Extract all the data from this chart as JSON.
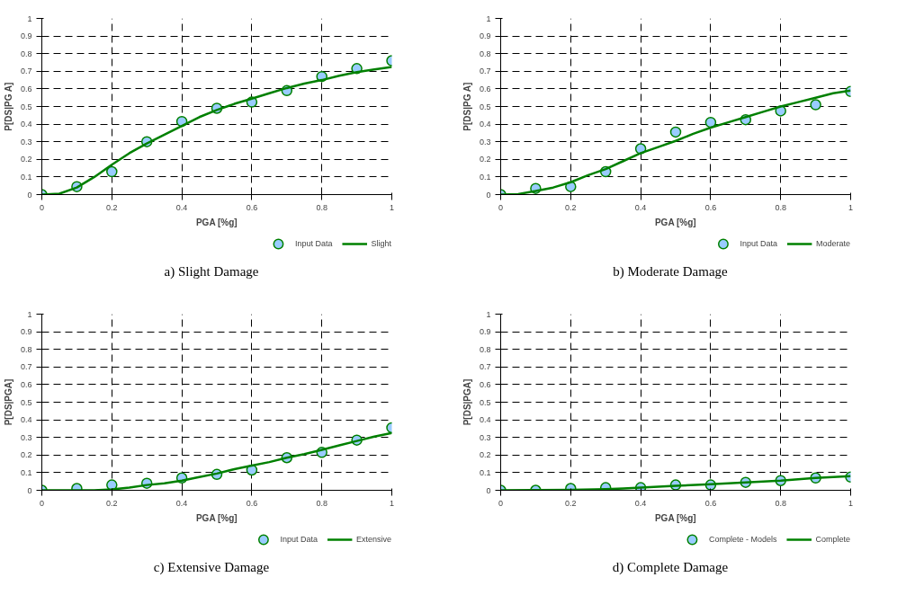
{
  "chart_data": [
    {
      "type": "scatter",
      "title": "a) Slight Damage",
      "xlabel": "PGA [%g]",
      "ylabel": "P[DS|PG A]",
      "xlim": [
        0,
        1
      ],
      "ylim": [
        0,
        1
      ],
      "xticks": [
        0,
        0.2,
        0.4,
        0.6,
        0.8,
        1
      ],
      "yticks": [
        0,
        0.1,
        0.2,
        0.3,
        0.4,
        0.5,
        0.6,
        0.7,
        0.8,
        0.9,
        1
      ],
      "grid": true,
      "legend": "bottom",
      "line_style": "solid",
      "series": [
        {
          "name": "Input Data",
          "marker": "circle",
          "color": "#99ccff",
          "x": [
            0,
            0.1,
            0.2,
            0.3,
            0.4,
            0.5,
            0.6,
            0.7,
            0.8,
            0.9,
            1
          ],
          "values": [
            0,
            0.045,
            0.13,
            0.3,
            0.415,
            0.49,
            0.525,
            0.59,
            0.67,
            0.715,
            0.76
          ]
        },
        {
          "name": "Slight",
          "type": "line",
          "color": "#008000",
          "x": [
            0,
            0.05,
            0.1,
            0.15,
            0.2,
            0.25,
            0.3,
            0.35,
            0.4,
            0.45,
            0.5,
            0.55,
            0.6,
            0.65,
            0.7,
            0.75,
            0.8,
            0.85,
            0.9,
            0.95,
            1
          ],
          "values": [
            0,
            0.005,
            0.04,
            0.1,
            0.17,
            0.235,
            0.29,
            0.34,
            0.39,
            0.44,
            0.48,
            0.515,
            0.545,
            0.575,
            0.605,
            0.63,
            0.65,
            0.675,
            0.695,
            0.71,
            0.725
          ]
        }
      ]
    },
    {
      "type": "scatter",
      "title": "b) Moderate Damage",
      "xlabel": "PGA [%g]",
      "ylabel": "P[DS|PG A]",
      "xlim": [
        0,
        1
      ],
      "ylim": [
        0,
        1
      ],
      "xticks": [
        0,
        0.2,
        0.4,
        0.6,
        0.8,
        1
      ],
      "yticks": [
        0,
        0.1,
        0.2,
        0.3,
        0.4,
        0.5,
        0.6,
        0.7,
        0.8,
        0.9,
        1
      ],
      "grid": true,
      "legend": "bottom",
      "line_style": "solid",
      "series": [
        {
          "name": "Input Data",
          "marker": "circle",
          "color": "#99ccff",
          "x": [
            0,
            0.1,
            0.2,
            0.3,
            0.4,
            0.5,
            0.6,
            0.7,
            0.8,
            0.9,
            1
          ],
          "values": [
            0,
            0.035,
            0.045,
            0.13,
            0.26,
            0.355,
            0.41,
            0.425,
            0.475,
            0.51,
            0.585
          ]
        },
        {
          "name": "Moderate",
          "type": "line",
          "color": "#008000",
          "x": [
            0,
            0.05,
            0.1,
            0.15,
            0.2,
            0.25,
            0.3,
            0.35,
            0.4,
            0.45,
            0.5,
            0.55,
            0.6,
            0.65,
            0.7,
            0.75,
            0.8,
            0.85,
            0.9,
            0.95,
            1
          ],
          "values": [
            0,
            0.003,
            0.02,
            0.04,
            0.07,
            0.11,
            0.145,
            0.19,
            0.235,
            0.27,
            0.305,
            0.345,
            0.38,
            0.41,
            0.44,
            0.47,
            0.5,
            0.525,
            0.55,
            0.575,
            0.59
          ]
        }
      ]
    },
    {
      "type": "scatter",
      "title": "c) Extensive Damage",
      "xlabel": "PGA [%g]",
      "ylabel": "P[DS|PGA]",
      "xlim": [
        0,
        1
      ],
      "ylim": [
        0,
        1
      ],
      "xticks": [
        0,
        0.2,
        0.4,
        0.6,
        0.8,
        1
      ],
      "yticks": [
        0,
        0.1,
        0.2,
        0.3,
        0.4,
        0.5,
        0.6,
        0.7,
        0.8,
        0.9,
        1
      ],
      "grid": true,
      "legend": "bottom",
      "line_style": "solid",
      "series": [
        {
          "name": "Input Data",
          "marker": "circle",
          "color": "#99ccff",
          "x": [
            0,
            0.1,
            0.2,
            0.3,
            0.4,
            0.5,
            0.6,
            0.7,
            0.8,
            0.9,
            1
          ],
          "values": [
            0,
            0.01,
            0.03,
            0.04,
            0.07,
            0.09,
            0.115,
            0.185,
            0.215,
            0.285,
            0.355
          ]
        },
        {
          "name": "Extensive",
          "type": "line",
          "color": "#008000",
          "x": [
            0,
            0.1,
            0.15,
            0.2,
            0.25,
            0.3,
            0.35,
            0.4,
            0.45,
            0.5,
            0.55,
            0.6,
            0.65,
            0.7,
            0.75,
            0.8,
            0.85,
            0.9,
            0.95,
            1
          ],
          "values": [
            0,
            0,
            0,
            0.005,
            0.015,
            0.03,
            0.04,
            0.055,
            0.075,
            0.095,
            0.12,
            0.14,
            0.16,
            0.185,
            0.205,
            0.23,
            0.255,
            0.28,
            0.305,
            0.325
          ]
        }
      ]
    },
    {
      "type": "scatter",
      "title": "d) Complete Damage",
      "xlabel": "PGA [%g]",
      "ylabel": "P[DS|PGA]",
      "xlim": [
        0,
        1
      ],
      "ylim": [
        0,
        1
      ],
      "xticks": [
        0,
        0.2,
        0.4,
        0.6,
        0.8,
        1
      ],
      "yticks": [
        0,
        0.1,
        0.2,
        0.3,
        0.4,
        0.5,
        0.6,
        0.7,
        0.8,
        0.9,
        1
      ],
      "grid": true,
      "legend": "bottom",
      "line_style": "solid",
      "series": [
        {
          "name": "Complete - Models",
          "marker": "circle",
          "color": "#99ccff",
          "x": [
            0,
            0.1,
            0.2,
            0.3,
            0.4,
            0.5,
            0.6,
            0.7,
            0.8,
            0.9,
            1
          ],
          "values": [
            0,
            0,
            0.01,
            0.015,
            0.015,
            0.03,
            0.03,
            0.045,
            0.055,
            0.07,
            0.075
          ]
        },
        {
          "name": "Complete",
          "type": "line",
          "color": "#008000",
          "x": [
            0,
            0.2,
            0.3,
            0.35,
            0.4,
            0.5,
            0.6,
            0.7,
            0.8,
            0.9,
            1
          ],
          "values": [
            0,
            0.002,
            0.007,
            0.01,
            0.015,
            0.025,
            0.035,
            0.045,
            0.055,
            0.07,
            0.08
          ]
        }
      ]
    }
  ]
}
